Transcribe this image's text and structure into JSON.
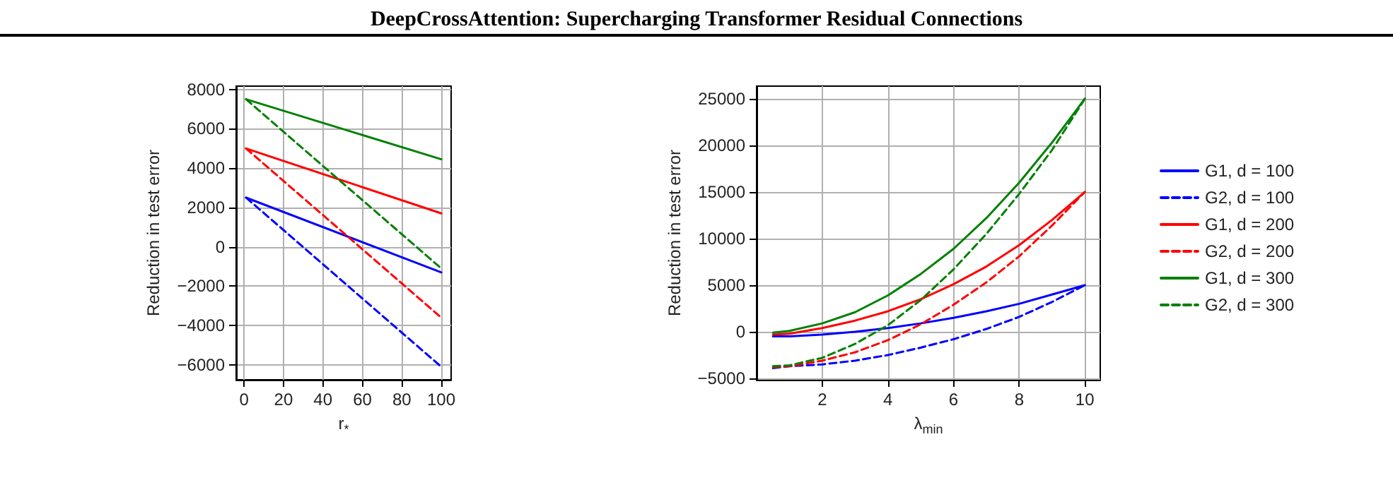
{
  "chart_data": [
    {
      "type": "line",
      "title": "DeepCrossAttention: Supercharging Transformer Residual Connections",
      "xlabel": "r$_{*}$",
      "ylabel": "Reduction in test error",
      "xlim": [
        -4,
        105
      ],
      "ylim": [
        -6760,
        8170
      ],
      "xticks": [
        0,
        20,
        40,
        60,
        80,
        100
      ],
      "yticks": [
        -6000,
        -4000,
        -2000,
        0,
        2000,
        4000,
        6000,
        8000
      ],
      "grid": true,
      "x": [
        1,
        100
      ],
      "series": [
        {
          "color": "#0000ff",
          "line_style": "solid",
          "values": [
            2500,
            -1300
          ]
        },
        {
          "color": "#0000ff",
          "line_style": "dashed",
          "values": [
            2500,
            -6100
          ]
        },
        {
          "color": "#ff0000",
          "line_style": "solid",
          "values": [
            5000,
            1700
          ]
        },
        {
          "color": "#ff0000",
          "line_style": "dashed",
          "values": [
            5000,
            -3600
          ]
        },
        {
          "color": "#008000",
          "line_style": "solid",
          "values": [
            7500,
            4450
          ]
        },
        {
          "color": "#008000",
          "line_style": "dashed",
          "values": [
            7500,
            -1100
          ]
        }
      ]
    },
    {
      "type": "line",
      "xlabel": "λ$_{min}$",
      "ylabel": "Reduction in test error",
      "xlim": [
        0,
        10.47
      ],
      "ylim": [
        -5150,
        26360
      ],
      "xticks": [
        2,
        4,
        6,
        8,
        10
      ],
      "yticks": [
        -5000,
        0,
        5000,
        10000,
        15000,
        20000,
        25000
      ],
      "grid": true,
      "legend": "right",
      "x": [
        0.5,
        1,
        2,
        3,
        4,
        5,
        6,
        7,
        8,
        9,
        10
      ],
      "series": [
        {
          "name": "G1, d = 100",
          "color": "#0000ff",
          "line_style": "solid",
          "values": [
            -500,
            -500,
            -300,
            0,
            400,
            900,
            1500,
            2200,
            3000,
            4000,
            5000
          ]
        },
        {
          "name": "G2, d = 100",
          "color": "#0000ff",
          "line_style": "dashed",
          "values": [
            -3900,
            -3700,
            -3500,
            -3100,
            -2500,
            -1700,
            -800,
            300,
            1600,
            3200,
            5000
          ]
        },
        {
          "name": "G1, d = 200",
          "color": "#ff0000",
          "line_style": "solid",
          "values": [
            -300,
            -200,
            400,
            1200,
            2200,
            3500,
            5100,
            7000,
            9300,
            12000,
            15000
          ]
        },
        {
          "name": "G2, d = 200",
          "color": "#ff0000",
          "line_style": "dashed",
          "values": [
            -3800,
            -3700,
            -3100,
            -2200,
            -900,
            800,
            2900,
            5300,
            8100,
            11400,
            15000
          ]
        },
        {
          "name": "G1, d = 300",
          "color": "#008000",
          "line_style": "solid",
          "values": [
            -100,
            100,
            900,
            2100,
            3900,
            6200,
            8900,
            12200,
            16000,
            20300,
            25000
          ]
        },
        {
          "name": "G2, d = 300",
          "color": "#008000",
          "line_style": "dashed",
          "values": [
            -3700,
            -3600,
            -2800,
            -1300,
            700,
            3400,
            6700,
            10500,
            14800,
            19500,
            25000
          ]
        }
      ]
    }
  ]
}
